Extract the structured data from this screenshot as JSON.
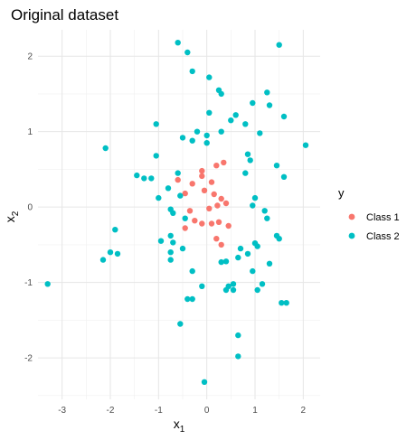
{
  "chart_data": {
    "type": "scatter",
    "title": "Original dataset",
    "xlabel": {
      "base": "x",
      "sub": "1"
    },
    "ylabel": {
      "base": "x",
      "sub": "2"
    },
    "xlim": [
      -3.5,
      2.35
    ],
    "ylim": [
      -2.55,
      2.35
    ],
    "x_ticks": [
      -3,
      -2,
      -1,
      0,
      1,
      2
    ],
    "y_ticks": [
      -2,
      -1,
      0,
      1,
      2
    ],
    "grid": true,
    "legend": {
      "title": "y",
      "placement": "right",
      "entries": [
        {
          "label": "Class 1",
          "color": "#F8766D"
        },
        {
          "label": "Class 2",
          "color": "#00BFC4"
        }
      ]
    },
    "series": [
      {
        "name": "Class 1",
        "color": "#F8766D",
        "points": [
          [
            -0.6,
            0.36
          ],
          [
            -0.45,
            0.18
          ],
          [
            -0.3,
            0.31
          ],
          [
            -0.1,
            0.48
          ],
          [
            -0.1,
            0.41
          ],
          [
            0.1,
            0.33
          ],
          [
            0.2,
            0.55
          ],
          [
            0.35,
            0.59
          ],
          [
            -0.05,
            0.22
          ],
          [
            0.15,
            0.17
          ],
          [
            0.3,
            0.11
          ],
          [
            0.4,
            0.05
          ],
          [
            0.22,
            0.02
          ],
          [
            0.05,
            -0.02
          ],
          [
            -0.35,
            -0.05
          ],
          [
            -0.25,
            -0.18
          ],
          [
            -0.1,
            -0.22
          ],
          [
            0.1,
            -0.22
          ],
          [
            0.25,
            -0.2
          ],
          [
            0.45,
            -0.25
          ],
          [
            -0.45,
            -0.28
          ],
          [
            0.2,
            -0.42
          ],
          [
            0.3,
            -0.5
          ]
        ]
      },
      {
        "name": "Class 2",
        "color": "#00BFC4",
        "points": [
          [
            -0.6,
            2.18
          ],
          [
            -0.4,
            2.05
          ],
          [
            1.5,
            2.15
          ],
          [
            -0.3,
            1.8
          ],
          [
            0.05,
            1.72
          ],
          [
            0.25,
            1.55
          ],
          [
            0.3,
            1.5
          ],
          [
            1.25,
            1.52
          ],
          [
            0.95,
            1.38
          ],
          [
            1.3,
            1.35
          ],
          [
            1.6,
            1.2
          ],
          [
            0.05,
            1.25
          ],
          [
            0.6,
            1.22
          ],
          [
            0.5,
            1.15
          ],
          [
            -1.05,
            1.1
          ],
          [
            0.8,
            1.1
          ],
          [
            0.3,
            1.0
          ],
          [
            -0.2,
            1.0
          ],
          [
            0.0,
            0.95
          ],
          [
            1.1,
            0.98
          ],
          [
            -0.5,
            0.92
          ],
          [
            -0.3,
            0.88
          ],
          [
            0.0,
            0.85
          ],
          [
            2.05,
            0.82
          ],
          [
            -2.1,
            0.78
          ],
          [
            0.85,
            0.7
          ],
          [
            0.9,
            0.62
          ],
          [
            -1.05,
            0.68
          ],
          [
            1.45,
            0.55
          ],
          [
            0.8,
            0.45
          ],
          [
            -1.45,
            0.42
          ],
          [
            -1.3,
            0.38
          ],
          [
            -1.15,
            0.38
          ],
          [
            1.6,
            0.4
          ],
          [
            -0.6,
            0.45
          ],
          [
            -0.8,
            0.25
          ],
          [
            -0.55,
            0.15
          ],
          [
            -1.0,
            0.12
          ],
          [
            1.0,
            0.12
          ],
          [
            0.95,
            0.02
          ],
          [
            1.2,
            -0.05
          ],
          [
            -0.75,
            -0.03
          ],
          [
            -0.7,
            -0.08
          ],
          [
            1.25,
            -0.15
          ],
          [
            -0.45,
            -0.15
          ],
          [
            -1.9,
            -0.3
          ],
          [
            1.45,
            -0.38
          ],
          [
            1.5,
            -0.42
          ],
          [
            -0.95,
            -0.45
          ],
          [
            -0.75,
            -0.38
          ],
          [
            -0.7,
            -0.47
          ],
          [
            1.0,
            -0.48
          ],
          [
            1.05,
            -0.52
          ],
          [
            0.7,
            -0.55
          ],
          [
            0.85,
            -0.62
          ],
          [
            0.65,
            -0.67
          ],
          [
            0.4,
            -0.72
          ],
          [
            -0.5,
            -0.55
          ],
          [
            -0.75,
            -0.6
          ],
          [
            0.3,
            -0.73
          ],
          [
            -2.0,
            -0.6
          ],
          [
            -1.85,
            -0.62
          ],
          [
            -2.15,
            -0.7
          ],
          [
            -0.75,
            -0.7
          ],
          [
            1.3,
            -0.75
          ],
          [
            -0.3,
            -0.85
          ],
          [
            0.95,
            -0.85
          ],
          [
            -3.3,
            -1.02
          ],
          [
            0.55,
            -1.02
          ],
          [
            1.15,
            -1.02
          ],
          [
            -0.1,
            -1.05
          ],
          [
            0.45,
            -1.05
          ],
          [
            0.55,
            -1.1
          ],
          [
            0.4,
            -1.1
          ],
          [
            1.05,
            -1.1
          ],
          [
            -0.3,
            -1.22
          ],
          [
            -0.4,
            -1.22
          ],
          [
            1.55,
            -1.27
          ],
          [
            1.65,
            -1.27
          ],
          [
            -0.55,
            -1.55
          ],
          [
            0.65,
            -1.7
          ],
          [
            0.65,
            -1.98
          ],
          [
            -0.05,
            -2.32
          ]
        ]
      }
    ]
  }
}
